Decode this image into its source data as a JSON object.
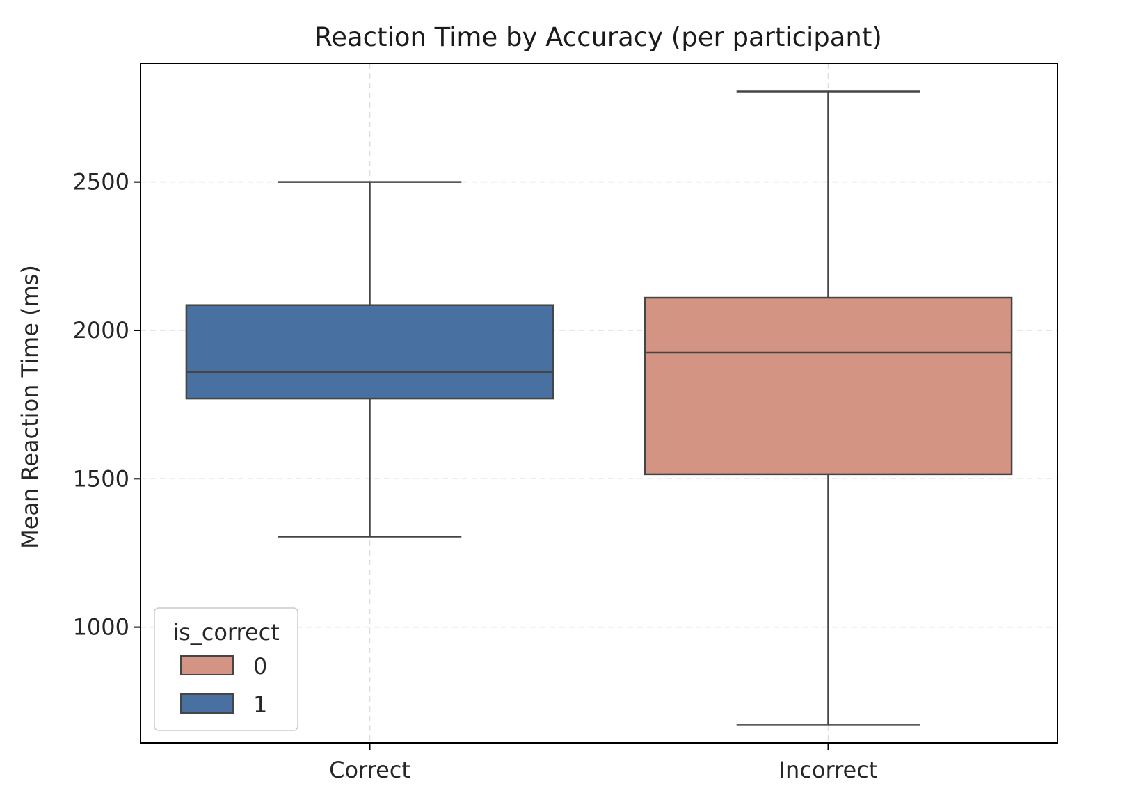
{
  "chart_data": {
    "type": "box",
    "title": "Reaction Time by Accuracy (per participant)",
    "xlabel": "",
    "ylabel": "Mean Reaction Time (ms)",
    "ylim": [
      610,
      2900
    ],
    "yticks": [
      1000,
      1500,
      2000,
      2500
    ],
    "grid": true,
    "categories": [
      "Correct",
      "Incorrect"
    ],
    "boxes": [
      {
        "category": "Correct",
        "hue": "1",
        "whisker_low": 1305,
        "q1": 1770,
        "median": 1860,
        "q3": 2085,
        "whisker_high": 2500
      },
      {
        "category": "Incorrect",
        "hue": "0",
        "whisker_low": 670,
        "q1": 1515,
        "median": 1925,
        "q3": 2110,
        "whisker_high": 2805
      }
    ],
    "legend": {
      "title": "is_correct",
      "position": "lower-left",
      "entries": [
        {
          "label": "0",
          "color": "#d49484"
        },
        {
          "label": "1",
          "color": "#4871a1"
        }
      ]
    },
    "colors": {
      "0": "#d49484",
      "1": "#4871a1"
    }
  }
}
